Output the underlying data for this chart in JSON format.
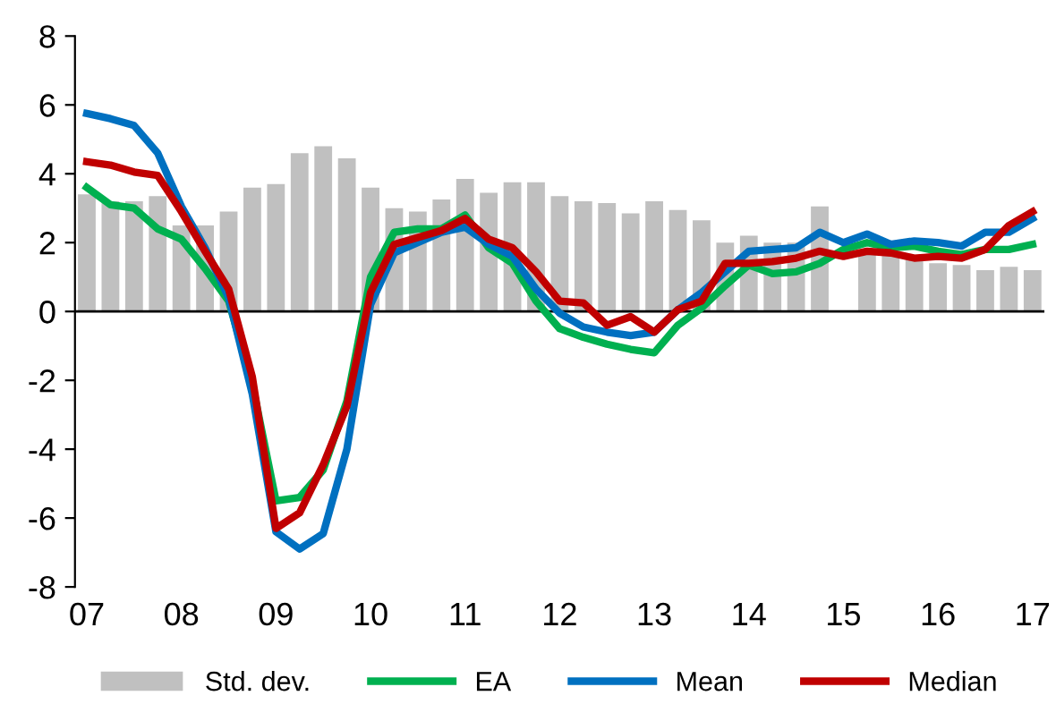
{
  "chart_data": {
    "type": "bar",
    "categories": [
      "07",
      null,
      null,
      null,
      "08",
      null,
      null,
      null,
      "09",
      null,
      null,
      null,
      "10",
      null,
      null,
      null,
      "11",
      null,
      null,
      null,
      "12",
      null,
      null,
      null,
      "13",
      null,
      null,
      null,
      "14",
      null,
      null,
      null,
      "15",
      null,
      null,
      null,
      "16",
      null,
      null,
      null,
      "17"
    ],
    "series": [
      {
        "name": "Std. dev.",
        "color": "#c0c0c0",
        "values": [
          3.4,
          3.2,
          3.2,
          3.35,
          2.5,
          2.5,
          2.9,
          3.6,
          3.7,
          4.6,
          4.8,
          4.45,
          3.6,
          3.0,
          2.9,
          3.25,
          3.85,
          3.45,
          3.75,
          3.75,
          3.35,
          3.2,
          3.15,
          2.85,
          3.2,
          2.95,
          2.65,
          2.0,
          2.2,
          2.0,
          2.0,
          3.05,
          null,
          1.8,
          1.7,
          1.5,
          1.4,
          1.35,
          1.2,
          1.3,
          1.2
        ]
      },
      {
        "name": "EA",
        "type": "line",
        "color": "#00b050",
        "values": [
          3.6,
          3.1,
          3.0,
          2.4,
          2.1,
          1.25,
          0.3,
          -2.1,
          -5.5,
          -5.4,
          -4.6,
          -2.6,
          1.0,
          2.3,
          2.4,
          2.4,
          2.8,
          1.85,
          1.4,
          0.3,
          -0.5,
          -0.75,
          -0.95,
          -1.1,
          -1.2,
          -0.4,
          0.1,
          0.75,
          1.35,
          1.1,
          1.15,
          1.4,
          1.8,
          2.0,
          1.85,
          1.9,
          1.75,
          1.65,
          1.8,
          1.8,
          1.95
        ]
      },
      {
        "name": "Mean",
        "type": "line",
        "color": "#0070c0",
        "values": [
          5.75,
          5.6,
          5.4,
          4.6,
          3.05,
          1.85,
          0.4,
          -2.4,
          -6.4,
          -6.9,
          -6.45,
          -4.0,
          0.2,
          1.7,
          2.0,
          2.3,
          2.45,
          1.95,
          1.6,
          0.65,
          -0.05,
          -0.45,
          -0.6,
          -0.7,
          -0.6,
          0.05,
          0.55,
          1.15,
          1.75,
          1.8,
          1.85,
          2.3,
          2.0,
          2.25,
          1.95,
          2.05,
          2.0,
          1.9,
          2.3,
          2.3,
          2.7
        ]
      },
      {
        "name": "Median",
        "type": "line",
        "color": "#c00000",
        "values": [
          4.35,
          4.25,
          4.05,
          3.95,
          2.9,
          1.75,
          0.65,
          -1.9,
          -6.3,
          -5.85,
          -4.45,
          -2.75,
          0.55,
          1.95,
          2.15,
          2.35,
          2.7,
          2.1,
          1.85,
          1.15,
          0.3,
          0.25,
          -0.4,
          -0.15,
          -0.6,
          0.05,
          0.3,
          1.4,
          1.4,
          1.45,
          1.55,
          1.75,
          1.6,
          1.75,
          1.7,
          1.55,
          1.6,
          1.55,
          1.8,
          2.5,
          2.9
        ]
      }
    ],
    "ylim": [
      -8,
      8
    ],
    "yticks": [
      -8,
      -6,
      -4,
      -2,
      0,
      2,
      4,
      6,
      8
    ],
    "legend": "bottom"
  }
}
